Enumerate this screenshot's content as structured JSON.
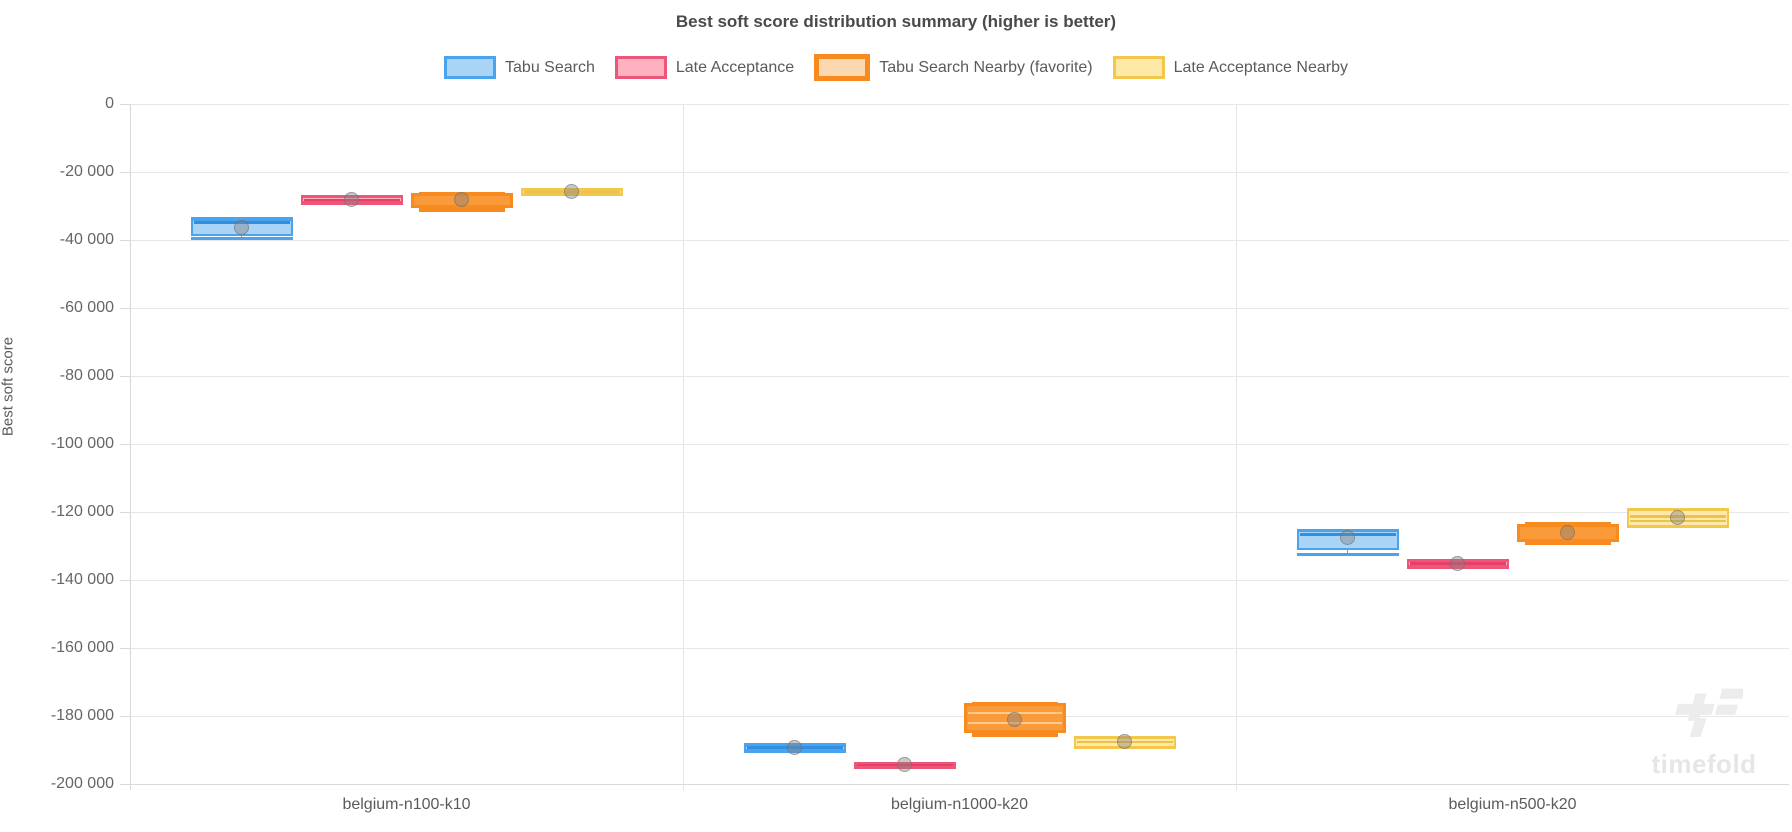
{
  "chart_data": {
    "type": "boxplot",
    "title": "Best soft score distribution summary (higher is better)",
    "ylabel": "Best soft score",
    "ylim": [
      -200000,
      0
    ],
    "grid": true,
    "legend_position": "top",
    "y_ticks": [
      0,
      -20000,
      -40000,
      -60000,
      -80000,
      -100000,
      -120000,
      -140000,
      -160000,
      -180000,
      -200000
    ],
    "y_tick_labels": [
      "0",
      "-20 000",
      "-40 000",
      "-60 000",
      "-80 000",
      "-100 000",
      "-120 000",
      "-140 000",
      "-160 000",
      "-180 000",
      "-200 000"
    ],
    "categories": [
      "belgium-n100-k10",
      "belgium-n1000-k20",
      "belgium-n500-k20"
    ],
    "mean_marker_color": "rgba(128,128,128,0.42)",
    "watermark": "timefold",
    "series": [
      {
        "name": "Tabu Search",
        "favorite": false,
        "border_color": "#4aa3ee",
        "fill_color": "#a9d4f6",
        "line_color": "#2f8fe0",
        "legend_fill": "#a9d4f6",
        "boxes": [
          {
            "low": -39700,
            "q1": -38700,
            "median": -34900,
            "q3": -33800,
            "high": -33800,
            "mean": -36200,
            "lines": [
              -34900
            ]
          },
          {
            "low": -190400,
            "q1": -190400,
            "median": -189300,
            "q3": -188500,
            "high": -188500,
            "mean": -189400,
            "lines": [
              -189300
            ]
          },
          {
            "low": -132400,
            "q1": -131200,
            "median": -126600,
            "q3": -125300,
            "high": -125300,
            "mean": -127600,
            "lines": [
              -126600
            ]
          }
        ]
      },
      {
        "name": "Late Acceptance",
        "favorite": false,
        "border_color": "#ee5679",
        "fill_color": "#ffb1c1",
        "line_color": "#e83e67",
        "legend_fill": "#ffb1c1",
        "boxes": [
          {
            "low": -29200,
            "q1": -29200,
            "median": -28300,
            "q3": -27100,
            "high": -27100,
            "mean": -28200,
            "lines": [
              -28300
            ]
          },
          {
            "low": -195000,
            "q1": -195000,
            "median": -194400,
            "q3": -193900,
            "high": -193900,
            "mean": -194400,
            "lines": [
              -194400
            ]
          },
          {
            "low": -136200,
            "q1": -136200,
            "median": -135200,
            "q3": -134200,
            "high": -134200,
            "mean": -135100,
            "lines": [
              -135200
            ]
          }
        ]
      },
      {
        "name": "Tabu Search Nearby (favorite)",
        "favorite": true,
        "border_color": "#f78b1f",
        "fill_color": "#fa9a38",
        "line_color": "#fcc98f",
        "legend_fill": "#fbd8b0",
        "boxes": [
          {
            "low": -30600,
            "q1": -30600,
            "median": -28400,
            "q3": -26200,
            "high": -26200,
            "mean": -28200,
            "lines": []
          },
          {
            "low": -185100,
            "q1": -185100,
            "median": -180900,
            "q3": -176200,
            "high": -176200,
            "mean": -180900,
            "lines": [
              -179100,
              -182100
            ]
          },
          {
            "low": -128800,
            "q1": -128800,
            "median": -126200,
            "q3": -123500,
            "high": -123500,
            "mean": -126000,
            "lines": []
          }
        ]
      },
      {
        "name": "Late Acceptance Nearby",
        "favorite": false,
        "border_color": "#f3c74b",
        "fill_color": "#ffe9a6",
        "line_color": "#edc14e",
        "legend_fill": "#ffe9a6",
        "boxes": [
          {
            "low": -26700,
            "q1": -26700,
            "median": -25900,
            "q3": -25000,
            "high": -25000,
            "mean": -25600,
            "lines": [
              -25900
            ]
          },
          {
            "low": -189400,
            "q1": -189400,
            "median": -187700,
            "q3": -186200,
            "high": -186200,
            "mean": -187600,
            "lines": [
              -187700
            ]
          },
          {
            "low": -124400,
            "q1": -124400,
            "median": -121900,
            "q3": -119200,
            "high": -119200,
            "mean": -121700,
            "lines": [
              -121300,
              -122600
            ]
          }
        ]
      }
    ]
  }
}
